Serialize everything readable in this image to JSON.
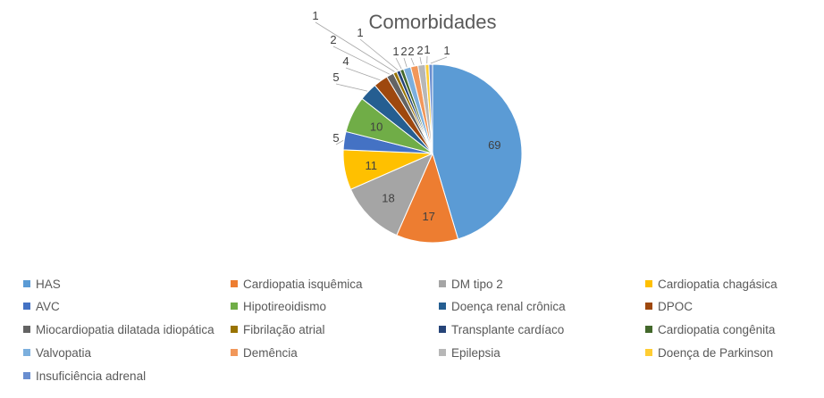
{
  "chart_data": {
    "type": "pie",
    "title": "Comorbidades",
    "categories": [
      "HAS",
      "Cardiopatia isquêmica",
      "DM tipo 2",
      "Cardiopatia chagásica",
      "AVC",
      "Hipotireoidismo",
      "Doença renal crônica",
      "DPOC",
      "Miocardiopatia dilatada idiopática",
      "Fibrilação atrial",
      "Transplante cardíaco",
      "Cardiopatia congênita",
      "Valvopatia",
      "Demência",
      "Epilepsia",
      "Doença de Parkinson",
      "Insuficiência adrenal"
    ],
    "values": [
      69,
      17,
      18,
      11,
      5,
      10,
      5,
      4,
      2,
      1,
      1,
      1,
      2,
      2,
      2,
      1,
      1
    ],
    "colors": [
      "#5B9BD5",
      "#ED7D31",
      "#A5A5A5",
      "#FFC000",
      "#4472C4",
      "#70AD47",
      "#255E91",
      "#9E480E",
      "#636363",
      "#997300",
      "#264478",
      "#43682B",
      "#7CAFDD",
      "#F1975A",
      "#B7B7B7",
      "#FFCD33",
      "#698ED0"
    ],
    "legend_position": "bottom",
    "data_labels": true
  }
}
